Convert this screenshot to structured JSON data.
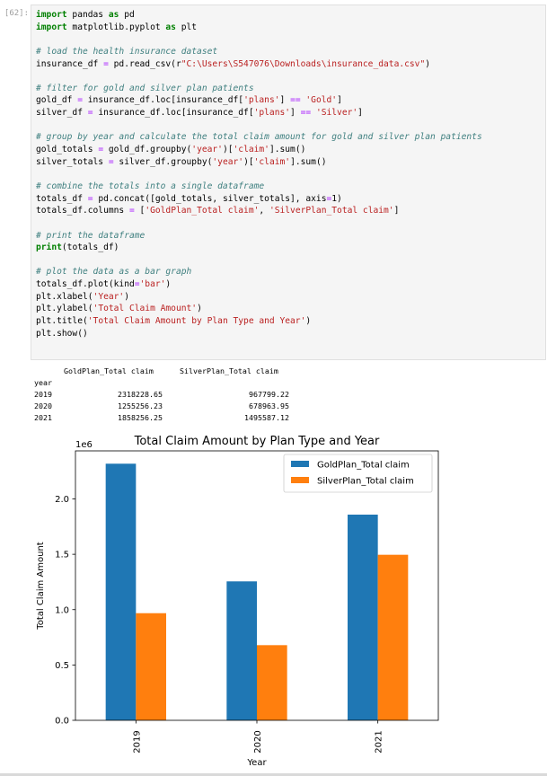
{
  "cell": {
    "prompt": "[62]:",
    "code_lines": [
      [
        {
          "t": "import",
          "c": "kw"
        },
        {
          "t": " pandas "
        },
        {
          "t": "as",
          "c": "kw"
        },
        {
          "t": " pd"
        }
      ],
      [
        {
          "t": "import",
          "c": "kw"
        },
        {
          "t": " matplotlib.pyplot "
        },
        {
          "t": "as",
          "c": "kw"
        },
        {
          "t": " plt"
        }
      ],
      [],
      [
        {
          "t": "# load the health insurance dataset",
          "c": "cm"
        }
      ],
      [
        {
          "t": "insurance_df "
        },
        {
          "t": "=",
          "c": "op"
        },
        {
          "t": " pd.read_csv(r"
        },
        {
          "t": "\"C:\\Users\\S547076\\Downloads\\insurance_data.csv\"",
          "c": "st"
        },
        {
          "t": ")"
        }
      ],
      [],
      [
        {
          "t": "# filter for gold and silver plan patients",
          "c": "cm"
        }
      ],
      [
        {
          "t": "gold_df "
        },
        {
          "t": "=",
          "c": "op"
        },
        {
          "t": " insurance_df.loc[insurance_df["
        },
        {
          "t": "'plans'",
          "c": "st"
        },
        {
          "t": "] "
        },
        {
          "t": "==",
          "c": "op"
        },
        {
          "t": " "
        },
        {
          "t": "'Gold'",
          "c": "st"
        },
        {
          "t": "]"
        }
      ],
      [
        {
          "t": "silver_df "
        },
        {
          "t": "=",
          "c": "op"
        },
        {
          "t": " insurance_df.loc[insurance_df["
        },
        {
          "t": "'plans'",
          "c": "st"
        },
        {
          "t": "] "
        },
        {
          "t": "==",
          "c": "op"
        },
        {
          "t": " "
        },
        {
          "t": "'Silver'",
          "c": "st"
        },
        {
          "t": "]"
        }
      ],
      [],
      [
        {
          "t": "# group by year and calculate the total claim amount for gold and silver plan patients",
          "c": "cm"
        }
      ],
      [
        {
          "t": "gold_totals "
        },
        {
          "t": "=",
          "c": "op"
        },
        {
          "t": " gold_df.groupby("
        },
        {
          "t": "'year'",
          "c": "st"
        },
        {
          "t": ")["
        },
        {
          "t": "'claim'",
          "c": "st"
        },
        {
          "t": "].sum()"
        }
      ],
      [
        {
          "t": "silver_totals "
        },
        {
          "t": "=",
          "c": "op"
        },
        {
          "t": " silver_df.groupby("
        },
        {
          "t": "'year'",
          "c": "st"
        },
        {
          "t": ")["
        },
        {
          "t": "'claim'",
          "c": "st"
        },
        {
          "t": "].sum()"
        }
      ],
      [],
      [
        {
          "t": "# combine the totals into a single dataframe",
          "c": "cm"
        }
      ],
      [
        {
          "t": "totals_df "
        },
        {
          "t": "=",
          "c": "op"
        },
        {
          "t": " pd.concat([gold_totals, silver_totals], axis"
        },
        {
          "t": "=",
          "c": "op"
        },
        {
          "t": "1)"
        }
      ],
      [
        {
          "t": "totals_df.columns "
        },
        {
          "t": "=",
          "c": "op"
        },
        {
          "t": " ["
        },
        {
          "t": "'GoldPlan_Total claim'",
          "c": "st"
        },
        {
          "t": ", "
        },
        {
          "t": "'SilverPlan_Total claim'",
          "c": "st"
        },
        {
          "t": "]"
        }
      ],
      [],
      [
        {
          "t": "# print the dataframe",
          "c": "cm"
        }
      ],
      [
        {
          "t": "print",
          "c": "kw"
        },
        {
          "t": "(totals_df)"
        }
      ],
      [],
      [
        {
          "t": "# plot the data as a bar graph",
          "c": "cm"
        }
      ],
      [
        {
          "t": "totals_df.plot(kind"
        },
        {
          "t": "=",
          "c": "op"
        },
        {
          "t": "'bar'",
          "c": "st"
        },
        {
          "t": ")"
        }
      ],
      [
        {
          "t": "plt.xlabel("
        },
        {
          "t": "'Year'",
          "c": "st"
        },
        {
          "t": ")"
        }
      ],
      [
        {
          "t": "plt.ylabel("
        },
        {
          "t": "'Total Claim Amount'",
          "c": "st"
        },
        {
          "t": ")"
        }
      ],
      [
        {
          "t": "plt.title("
        },
        {
          "t": "'Total Claim Amount by Plan Type and Year'",
          "c": "st"
        },
        {
          "t": ")"
        }
      ],
      [
        {
          "t": "plt.show()"
        }
      ]
    ]
  },
  "output_table": {
    "header": [
      "GoldPlan_Total claim",
      "SilverPlan_Total claim"
    ],
    "index_name": "year",
    "rows": [
      {
        "year": "2019",
        "gold": "2318228.65",
        "silver": "967799.22"
      },
      {
        "year": "2020",
        "gold": "1255256.23",
        "silver": "678963.95"
      },
      {
        "year": "2021",
        "gold": "1858256.25",
        "silver": "1495587.12"
      }
    ]
  },
  "chart_data": {
    "type": "bar",
    "title": "Total Claim Amount by Plan Type and Year",
    "xlabel": "Year",
    "ylabel": "Total Claim Amount",
    "offset_label": "1e6",
    "categories": [
      "2019",
      "2020",
      "2021"
    ],
    "series": [
      {
        "name": "GoldPlan_Total claim",
        "values": [
          2318228.65,
          1255256.23,
          1858256.25
        ],
        "color": "#1f77b4"
      },
      {
        "name": "SilverPlan_Total claim",
        "values": [
          967799.22,
          678963.95,
          1495587.12
        ],
        "color": "#ff7f0e"
      }
    ],
    "yticks": [
      0.0,
      0.5,
      1.0,
      1.5,
      2.0
    ],
    "ytick_labels": [
      "0.0",
      "0.5",
      "1.0",
      "1.5",
      "2.0"
    ],
    "ylim": [
      0,
      2434140
    ],
    "legend": "top-right",
    "grid": false
  }
}
